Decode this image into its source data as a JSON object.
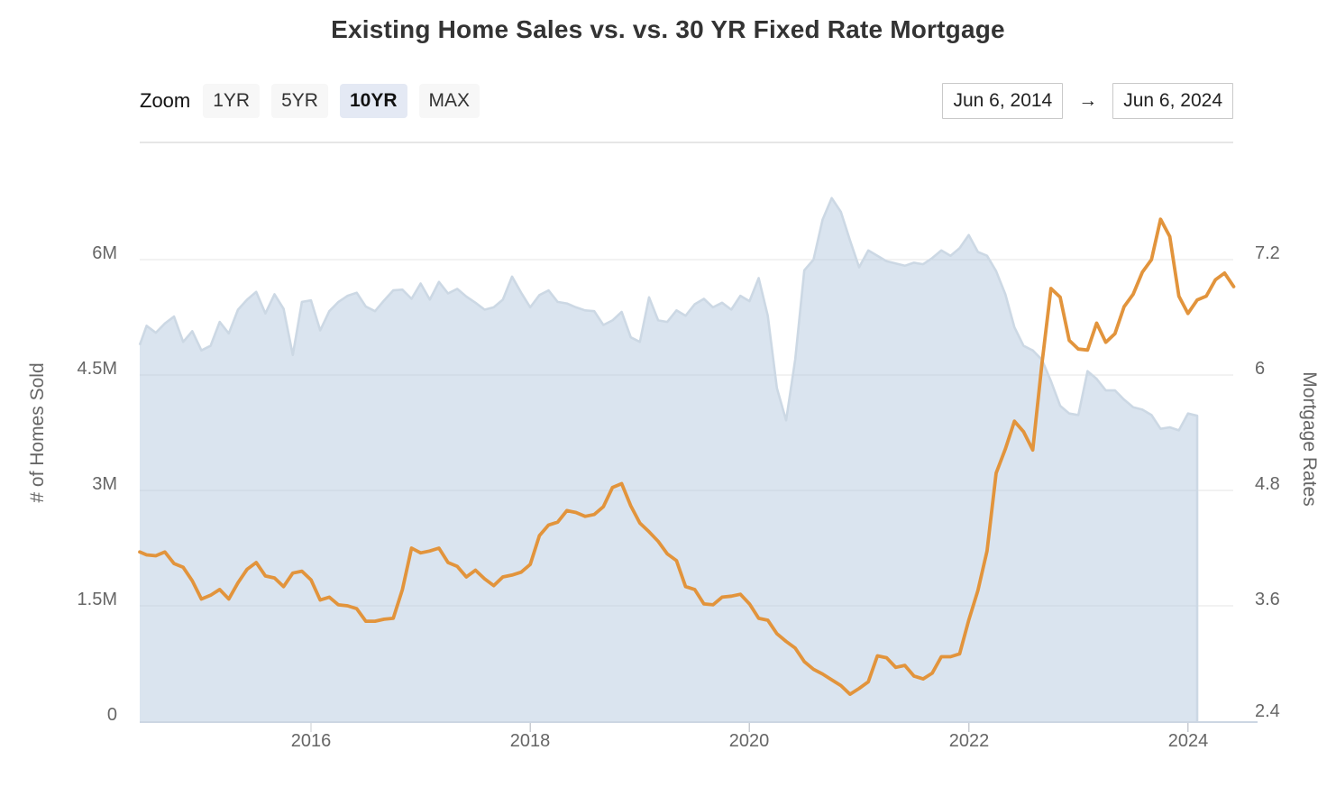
{
  "title": "Existing Home Sales vs. vs. 30 YR Fixed Rate Mortgage",
  "toolbar": {
    "zoom_label": "Zoom",
    "range_buttons": [
      {
        "label": "1YR",
        "active": false
      },
      {
        "label": "5YR",
        "active": false
      },
      {
        "label": "10YR",
        "active": true
      },
      {
        "label": "MAX",
        "active": false
      }
    ],
    "date_from": "Jun 6, 2014",
    "arrow": "→",
    "date_to": "Jun 6, 2024"
  },
  "chart_data": {
    "type": "area",
    "title": "Existing Home Sales vs. vs. 30 YR Fixed Rate Mortgage",
    "interval": "monthly",
    "x_axis": {
      "start": "2014-06",
      "end": "2024-06",
      "ticks": [
        "2016",
        "2018",
        "2020",
        "2022",
        "2024"
      ]
    },
    "left_axis": {
      "title": "# of Homes Sold",
      "ticks": [
        "0",
        "1.5M",
        "3M",
        "4.5M",
        "6M"
      ],
      "min": 0,
      "max": 6000000
    },
    "right_axis": {
      "title": "Mortgage Rates",
      "ticks": [
        "2.4",
        "3.6",
        "4.8",
        "6",
        "7.2"
      ],
      "min": 2.4,
      "max": 7.2
    },
    "grid": "horizontal",
    "legend": "none",
    "colors": {
      "area_fill": "rgba(173,196,219,0.45)",
      "area_edge": "#ccd8e4",
      "rate_line": "#e2943c",
      "gridline": "#e6e6e6",
      "axis_line": "#ccd6e3",
      "tick_mark": "#c9ccd2"
    },
    "series": [
      {
        "name": "Existing Home Sales",
        "type": "area",
        "axis": "left",
        "unit": "million homes (SAAR)",
        "start": "2014-06",
        "values": [
          4.89,
          5.14,
          5.05,
          5.17,
          5.26,
          4.93,
          5.07,
          4.82,
          4.88,
          5.19,
          5.04,
          5.35,
          5.48,
          5.58,
          5.3,
          5.55,
          5.36,
          4.76,
          5.45,
          5.47,
          5.08,
          5.33,
          5.45,
          5.53,
          5.57,
          5.39,
          5.33,
          5.47,
          5.6,
          5.61,
          5.49,
          5.69,
          5.48,
          5.71,
          5.56,
          5.62,
          5.52,
          5.44,
          5.35,
          5.38,
          5.48,
          5.78,
          5.57,
          5.38,
          5.54,
          5.6,
          5.45,
          5.43,
          5.38,
          5.34,
          5.33,
          5.15,
          5.21,
          5.32,
          4.99,
          4.93,
          5.51,
          5.21,
          5.19,
          5.34,
          5.27,
          5.42,
          5.49,
          5.38,
          5.44,
          5.35,
          5.53,
          5.46,
          5.76,
          5.27,
          4.33,
          3.91,
          4.7,
          5.86,
          6.0,
          6.52,
          6.8,
          6.62,
          6.25,
          5.9,
          6.12,
          6.05,
          5.98,
          5.95,
          5.92,
          5.96,
          5.94,
          6.02,
          6.12,
          6.05,
          6.15,
          6.32,
          6.1,
          6.05,
          5.85,
          5.55,
          5.12,
          4.88,
          4.82,
          4.7,
          4.42,
          4.1,
          4.0,
          3.98,
          4.55,
          4.45,
          4.3,
          4.3,
          4.18,
          4.08,
          4.05,
          3.98,
          3.8,
          3.82,
          3.78,
          4.0,
          3.97
        ]
      },
      {
        "name": "30 YR Fixed Rate Mortgage",
        "type": "line",
        "axis": "right",
        "unit": "percent",
        "start": "2014-06",
        "values": [
          4.16,
          4.13,
          4.12,
          4.16,
          4.04,
          4.0,
          3.86,
          3.67,
          3.71,
          3.77,
          3.67,
          3.84,
          3.98,
          4.05,
          3.91,
          3.89,
          3.8,
          3.94,
          3.96,
          3.87,
          3.66,
          3.69,
          3.61,
          3.6,
          3.57,
          3.44,
          3.44,
          3.46,
          3.47,
          3.77,
          4.2,
          4.15,
          4.17,
          4.2,
          4.05,
          4.01,
          3.9,
          3.97,
          3.88,
          3.81,
          3.9,
          3.92,
          3.95,
          4.03,
          4.33,
          4.44,
          4.47,
          4.59,
          4.57,
          4.53,
          4.55,
          4.63,
          4.83,
          4.87,
          4.64,
          4.46,
          4.37,
          4.27,
          4.14,
          4.07,
          3.8,
          3.77,
          3.62,
          3.61,
          3.69,
          3.7,
          3.72,
          3.62,
          3.47,
          3.45,
          3.31,
          3.23,
          3.16,
          3.02,
          2.94,
          2.89,
          2.83,
          2.77,
          2.68,
          2.74,
          2.81,
          3.08,
          3.06,
          2.96,
          2.98,
          2.87,
          2.84,
          2.9,
          3.07,
          3.07,
          3.1,
          3.45,
          3.76,
          4.17,
          4.98,
          5.23,
          5.52,
          5.41,
          5.22,
          6.11,
          6.9,
          6.81,
          6.36,
          6.27,
          6.26,
          6.54,
          6.34,
          6.43,
          6.71,
          6.84,
          7.07,
          7.2,
          7.62,
          7.44,
          6.82,
          6.64,
          6.78,
          6.82,
          6.99,
          7.06,
          6.92
        ]
      }
    ]
  }
}
